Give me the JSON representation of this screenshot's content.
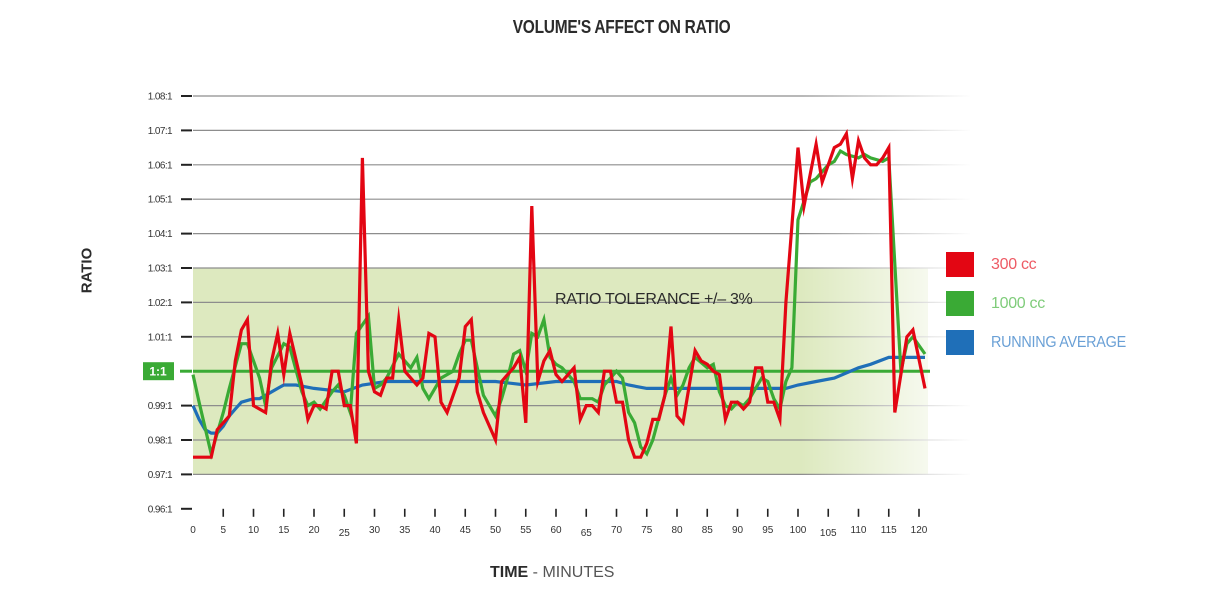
{
  "chart_data": {
    "type": "line",
    "title": "VOLUME'S AFFECT ON RATIO",
    "xlabel_bold": "TIME",
    "xlabel_rest": " - MINUTES",
    "ylabel": "RATIO",
    "xlim": [
      0,
      128
    ],
    "ylim": [
      0.96,
      1.08
    ],
    "grid": true,
    "x_ticks": [
      0,
      5,
      10,
      15,
      20,
      25,
      30,
      35,
      40,
      45,
      50,
      55,
      60,
      65,
      70,
      75,
      80,
      85,
      90,
      95,
      100,
      105,
      110,
      115,
      120
    ],
    "y_ticks": [
      {
        "value": 1.08,
        "label": "1.08:1"
      },
      {
        "value": 1.07,
        "label": "1.07:1"
      },
      {
        "value": 1.06,
        "label": "1.06:1"
      },
      {
        "value": 1.05,
        "label": "1.05:1"
      },
      {
        "value": 1.04,
        "label": "1.04:1"
      },
      {
        "value": 1.03,
        "label": "1.03:1"
      },
      {
        "value": 1.02,
        "label": "1.02:1"
      },
      {
        "value": 1.01,
        "label": "1.01:1"
      },
      {
        "value": 1.0,
        "label": "1:1",
        "highlight": true
      },
      {
        "value": 0.99,
        "label": "0.99:1"
      },
      {
        "value": 0.98,
        "label": "0.98:1"
      },
      {
        "value": 0.97,
        "label": "0.97:1"
      },
      {
        "value": 0.96,
        "label": "0.96:1"
      }
    ],
    "tolerance_band": {
      "low": 0.97,
      "high": 1.03,
      "label": "RATIO TOLERANCE +/– 3%",
      "color": "#dde9bf"
    },
    "reference_line": {
      "value": 1.0,
      "color": "#3aaa35"
    },
    "legend_position": "right",
    "series": [
      {
        "name": "300 cc",
        "color": "#e30613",
        "label_color": "#ee5a64",
        "points": [
          [
            0,
            0.975
          ],
          [
            3,
            0.975
          ],
          [
            4,
            0.983
          ],
          [
            6,
            0.987
          ],
          [
            7,
            1.003
          ],
          [
            8,
            1.012
          ],
          [
            9,
            1.015
          ],
          [
            10,
            0.99
          ],
          [
            12,
            0.988
          ],
          [
            13,
            1.003
          ],
          [
            14,
            1.011
          ],
          [
            15,
            0.999
          ],
          [
            16,
            1.011
          ],
          [
            18,
            0.996
          ],
          [
            19,
            0.986
          ],
          [
            20,
            0.99
          ],
          [
            21,
            0.99
          ],
          [
            22,
            0.989
          ],
          [
            23,
            1.0
          ],
          [
            24,
            1.0
          ],
          [
            25,
            0.99
          ],
          [
            26,
            0.99
          ],
          [
            27,
            0.979
          ],
          [
            28,
            1.062
          ],
          [
            29,
            1.0
          ],
          [
            30,
            0.994
          ],
          [
            31,
            0.993
          ],
          [
            32,
            0.998
          ],
          [
            33,
            0.998
          ],
          [
            34,
            1.015
          ],
          [
            35,
            1.0
          ],
          [
            36,
            0.998
          ],
          [
            37,
            0.996
          ],
          [
            38,
            0.998
          ],
          [
            39,
            1.011
          ],
          [
            40,
            1.01
          ],
          [
            41,
            0.991
          ],
          [
            42,
            0.988
          ],
          [
            44,
            0.998
          ],
          [
            45,
            1.013
          ],
          [
            46,
            1.015
          ],
          [
            47,
            0.994
          ],
          [
            48,
            0.988
          ],
          [
            50,
            0.98
          ],
          [
            51,
            0.997
          ],
          [
            52,
            0.999
          ],
          [
            53,
            1.001
          ],
          [
            54,
            1.004
          ],
          [
            55,
            0.985
          ],
          [
            56,
            1.048
          ],
          [
            57,
            0.997
          ],
          [
            58,
            1.003
          ],
          [
            59,
            1.006
          ],
          [
            60,
            0.999
          ],
          [
            61,
            0.997
          ],
          [
            62,
            0.999
          ],
          [
            63,
            1.001
          ],
          [
            64,
            0.986
          ],
          [
            65,
            0.99
          ],
          [
            66,
            0.99
          ],
          [
            67,
            0.988
          ],
          [
            68,
            1.0
          ],
          [
            69,
            1.0
          ],
          [
            70,
            0.991
          ],
          [
            71,
            0.991
          ],
          [
            72,
            0.98
          ],
          [
            73,
            0.975
          ],
          [
            74,
            0.975
          ],
          [
            75,
            0.979
          ],
          [
            76,
            0.986
          ],
          [
            77,
            0.986
          ],
          [
            78,
            0.993
          ],
          [
            79,
            1.013
          ],
          [
            80,
            0.987
          ],
          [
            81,
            0.985
          ],
          [
            83,
            1.006
          ],
          [
            84,
            1.003
          ],
          [
            85,
            1.002
          ],
          [
            86,
            1.0
          ],
          [
            87,
            0.999
          ],
          [
            88,
            0.986
          ],
          [
            89,
            0.991
          ],
          [
            90,
            0.991
          ],
          [
            91,
            0.989
          ],
          [
            92,
            0.991
          ],
          [
            93,
            1.001
          ],
          [
            94,
            1.001
          ],
          [
            95,
            0.991
          ],
          [
            96,
            0.991
          ],
          [
            97,
            0.986
          ],
          [
            98,
            1.02
          ],
          [
            100,
            1.065
          ],
          [
            101,
            1.048
          ],
          [
            103,
            1.066
          ],
          [
            104,
            1.055
          ],
          [
            106,
            1.065
          ],
          [
            107,
            1.066
          ],
          [
            108,
            1.069
          ],
          [
            109,
            1.056
          ],
          [
            110,
            1.067
          ],
          [
            111,
            1.062
          ],
          [
            112,
            1.06
          ],
          [
            113,
            1.06
          ],
          [
            114,
            1.062
          ],
          [
            115,
            1.065
          ],
          [
            116,
            0.988
          ],
          [
            118,
            1.01
          ],
          [
            119,
            1.012
          ],
          [
            121,
            0.995
          ]
        ]
      },
      {
        "name": "1000 cc",
        "color": "#3aaa35",
        "label_color": "#7fcc7a",
        "points": [
          [
            0,
            0.999
          ],
          [
            1,
            0.991
          ],
          [
            3,
            0.976
          ],
          [
            5,
            0.988
          ],
          [
            6,
            0.995
          ],
          [
            8,
            1.008
          ],
          [
            9,
            1.008
          ],
          [
            11,
            0.998
          ],
          [
            12,
            0.99
          ],
          [
            13,
            1.001
          ],
          [
            15,
            1.008
          ],
          [
            16,
            1.007
          ],
          [
            18,
            0.994
          ],
          [
            19,
            0.99
          ],
          [
            20,
            0.991
          ],
          [
            21,
            0.989
          ],
          [
            23,
            0.994
          ],
          [
            24,
            0.996
          ],
          [
            25,
            0.993
          ],
          [
            26,
            0.988
          ],
          [
            27,
            1.011
          ],
          [
            29,
            1.016
          ],
          [
            30,
            0.995
          ],
          [
            31,
            0.996
          ],
          [
            32,
            0.998
          ],
          [
            34,
            1.005
          ],
          [
            35,
            1.003
          ],
          [
            36,
            1.001
          ],
          [
            37,
            1.004
          ],
          [
            38,
            0.995
          ],
          [
            39,
            0.992
          ],
          [
            41,
            0.998
          ],
          [
            43,
            1.0
          ],
          [
            44,
            1.005
          ],
          [
            45,
            1.009
          ],
          [
            46,
            1.009
          ],
          [
            47,
            1.001
          ],
          [
            48,
            0.993
          ],
          [
            50,
            0.987
          ],
          [
            51,
            0.992
          ],
          [
            52,
            0.998
          ],
          [
            53,
            1.005
          ],
          [
            54,
            1.006
          ],
          [
            55,
            1.0
          ],
          [
            56,
            1.011
          ],
          [
            57,
            1.01
          ],
          [
            58,
            1.015
          ],
          [
            59,
            1.004
          ],
          [
            60,
            1.002
          ],
          [
            61,
            1.001
          ],
          [
            62,
            0.999
          ],
          [
            63,
            0.997
          ],
          [
            64,
            0.992
          ],
          [
            66,
            0.992
          ],
          [
            67,
            0.991
          ],
          [
            68,
            0.996
          ],
          [
            70,
            1.0
          ],
          [
            71,
            0.998
          ],
          [
            72,
            0.988
          ],
          [
            73,
            0.985
          ],
          [
            74,
            0.978
          ],
          [
            75,
            0.976
          ],
          [
            76,
            0.98
          ],
          [
            78,
            0.993
          ],
          [
            79,
            0.998
          ],
          [
            80,
            0.993
          ],
          [
            81,
            0.996
          ],
          [
            82,
            1.001
          ],
          [
            83,
            1.004
          ],
          [
            85,
            1.001
          ],
          [
            86,
            1.002
          ],
          [
            87,
            0.994
          ],
          [
            88,
            0.99
          ],
          [
            89,
            0.989
          ],
          [
            90,
            0.991
          ],
          [
            91,
            0.99
          ],
          [
            92,
            0.992
          ],
          [
            93,
            0.995
          ],
          [
            94,
            0.998
          ],
          [
            95,
            0.997
          ],
          [
            96,
            0.992
          ],
          [
            97,
            0.989
          ],
          [
            98,
            0.997
          ],
          [
            99,
            1.001
          ],
          [
            100,
            1.044
          ],
          [
            102,
            1.055
          ],
          [
            103,
            1.056
          ],
          [
            105,
            1.06
          ],
          [
            106,
            1.061
          ],
          [
            107,
            1.064
          ],
          [
            108,
            1.063
          ],
          [
            110,
            1.062
          ],
          [
            111,
            1.063
          ],
          [
            112,
            1.062
          ],
          [
            114,
            1.061
          ],
          [
            115,
            1.062
          ],
          [
            117,
            1.0
          ],
          [
            118,
            1.008
          ],
          [
            119,
            1.01
          ],
          [
            121,
            1.005
          ]
        ]
      },
      {
        "name": "RUNNING AVERAGE",
        "color": "#1f6fb8",
        "label_color": "#6aa0d6",
        "points": [
          [
            0,
            0.99
          ],
          [
            1,
            0.986
          ],
          [
            2,
            0.983
          ],
          [
            3,
            0.982
          ],
          [
            4,
            0.982
          ],
          [
            5,
            0.984
          ],
          [
            6,
            0.987
          ],
          [
            7,
            0.989
          ],
          [
            8,
            0.991
          ],
          [
            10,
            0.992
          ],
          [
            11,
            0.992
          ],
          [
            12,
            0.993
          ],
          [
            14,
            0.995
          ],
          [
            15,
            0.996
          ],
          [
            17,
            0.996
          ],
          [
            20,
            0.995
          ],
          [
            25,
            0.994
          ],
          [
            28,
            0.996
          ],
          [
            32,
            0.997
          ],
          [
            35,
            0.997
          ],
          [
            40,
            0.997
          ],
          [
            45,
            0.997
          ],
          [
            50,
            0.997
          ],
          [
            55,
            0.996
          ],
          [
            60,
            0.997
          ],
          [
            65,
            0.997
          ],
          [
            70,
            0.997
          ],
          [
            72,
            0.996
          ],
          [
            75,
            0.995
          ],
          [
            80,
            0.995
          ],
          [
            85,
            0.995
          ],
          [
            90,
            0.995
          ],
          [
            95,
            0.995
          ],
          [
            98,
            0.995
          ],
          [
            100,
            0.996
          ],
          [
            103,
            0.997
          ],
          [
            106,
            0.998
          ],
          [
            110,
            1.001
          ],
          [
            112,
            1.002
          ],
          [
            115,
            1.004
          ],
          [
            118,
            1.004
          ],
          [
            121,
            1.004
          ]
        ]
      }
    ]
  }
}
